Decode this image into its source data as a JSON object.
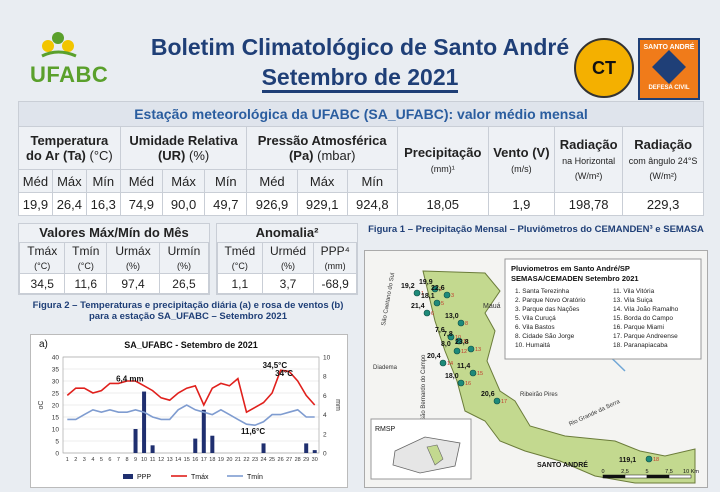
{
  "header": {
    "logo_text": "UFABC",
    "title": "Boletim Climatológico de Santo André",
    "subtitle": "Setembro de 2021",
    "right_logo1": "CT",
    "right_logo2_top": "SANTO ANDRÉ",
    "right_logo2_bottom": "DEFESA CIVIL"
  },
  "station": {
    "title": "Estação meteorológica da UFABC  (SA_UFABC): valor médio mensal",
    "groups": [
      {
        "name": "Temperatura",
        "name2": "do Ar (Ta)",
        "unit": "(°C)"
      },
      {
        "name": "Umidade Relativa",
        "name2": "(UR)",
        "unit": "(%)"
      },
      {
        "name": "Pressão Atmosférica",
        "name2": "(Pa)",
        "unit": "(mbar)"
      }
    ],
    "sub_labels": [
      "Méd",
      "Máx",
      "Mín",
      "Méd",
      "Máx",
      "Mín",
      "Méd",
      "Máx",
      "Mín"
    ],
    "values": [
      "19,9",
      "26,4",
      "16,3",
      "74,9",
      "90,0",
      "49,7",
      "926,9",
      "929,1",
      "924,8"
    ],
    "precip": {
      "label": "Precipitação",
      "unit": "(mm)¹",
      "value": "18,05"
    },
    "vento": {
      "label": "Vento (V)",
      "unit": "(m/s)",
      "value": "1,9"
    },
    "rad_h": {
      "label": "Radiação",
      "sub": "na Horizontal",
      "unit": "(W/m²)",
      "value": "198,78"
    },
    "rad_a": {
      "label": "Radiação",
      "sub": "com ângulo 24°S",
      "unit": "(W/m²)",
      "value": "229,3"
    }
  },
  "maxmin": {
    "title": "Valores Máx/Mín do Mês",
    "labels": [
      "Tmáx",
      "Tmín",
      "Urmáx",
      "Urmín"
    ],
    "units": [
      "(°C)",
      "(°C)",
      "(%)",
      "(%)"
    ],
    "values": [
      "34,5",
      "11,6",
      "97,4",
      "26,5"
    ]
  },
  "anomalia": {
    "title": "Anomalia²",
    "labels": [
      "Tméd",
      "Urméd",
      "PPP⁴"
    ],
    "units": [
      "(°C)",
      "(%)",
      "(mm)"
    ],
    "values": [
      "1,1",
      "3,7",
      "-68,9"
    ]
  },
  "fig2": {
    "caption": "Figura 2 – Temperaturas e precipitação diária (a) e rosa de ventos (b) para a estação SA_UFABC – Setembro 2021",
    "panel_label": "a)",
    "annotations": [
      "6,4 mm",
      "34,5°C",
      "34°C",
      "11,6°C"
    ],
    "legend": [
      "PPP",
      "Tmáx",
      "Tmín"
    ]
  },
  "chart_data": {
    "type": "line",
    "title": "SA_UFABC - Setembro de 2021",
    "ylabel": "oC",
    "y2label": "mm",
    "ylim": [
      0,
      40
    ],
    "y2lim": [
      0,
      10
    ],
    "x": [
      1,
      2,
      3,
      4,
      5,
      6,
      7,
      8,
      9,
      10,
      11,
      12,
      13,
      14,
      15,
      16,
      17,
      18,
      19,
      20,
      21,
      22,
      23,
      24,
      25,
      26,
      27,
      28,
      29,
      30
    ],
    "series": [
      {
        "name": "Tmáx",
        "color": "#e0201c",
        "values": [
          24,
          27,
          27,
          25,
          26,
          29,
          29,
          30,
          30,
          28,
          26,
          23,
          22,
          25,
          27,
          28,
          20,
          27,
          29,
          28,
          31,
          17,
          19,
          21,
          25,
          34.5,
          34,
          30,
          24,
          20
        ]
      },
      {
        "name": "Tmín",
        "color": "#7f9cd0",
        "values": [
          14,
          14,
          16,
          18,
          17,
          18,
          17,
          17,
          18,
          17,
          15,
          14,
          14,
          18,
          20,
          18,
          17,
          16,
          18,
          16,
          14,
          12,
          11.6,
          13,
          16,
          16,
          17,
          18,
          15,
          15
        ]
      },
      {
        "name": "PPP",
        "color": "#1f2f6f",
        "values": [
          0,
          0,
          0,
          0,
          0,
          0,
          0,
          0,
          2.5,
          6.4,
          0.8,
          0,
          0,
          0,
          0,
          1.5,
          4.5,
          1.8,
          0,
          0,
          0,
          0,
          0,
          1,
          0,
          0,
          0,
          0,
          1,
          0.3
        ]
      }
    ]
  },
  "fig1": {
    "caption": "Figura 1 – Precipitação Mensal – Pluviômetros do CEMANDEN³ e SEMASA",
    "legend_title1": "Pluviometros em Santo André/SP",
    "legend_title2": "SEMASA/CEMADEN Setembro 2021",
    "legend_items_left": [
      "1. Santa Terezinha",
      "2. Parque Novo Oratório",
      "3. Parque das Nações",
      "5. Vila Curuçá",
      "6. Vila Bastos",
      "8. Cidade São Jorge",
      "10. Humaitá"
    ],
    "legend_items_right": [
      "11. Vila Vitória",
      "13. Vila Suiça",
      "14. Vila João Ramalho",
      "15. Borda do Campo",
      "16. Parque Miami",
      "17. Parque Andreense",
      "18. Paranapiacaba"
    ],
    "places": [
      "São Caetano do Sul",
      "Mauá",
      "Diadema",
      "Ribeirão Pires",
      "Rio Grande da Serra",
      "São Bernardo do Campo",
      "SANTO ANDRÉ",
      "RMSP"
    ],
    "points": [
      {
        "id": "1",
        "val": "19,2"
      },
      {
        "id": "2",
        "val": "19,9"
      },
      {
        "id": "3",
        "val": "22,6"
      },
      {
        "id": "5",
        "val": "18,1"
      },
      {
        "id": "6",
        "val": "21,4"
      },
      {
        "id": "8",
        "val": "13,0"
      },
      {
        "id": "10",
        "val": "7,6"
      },
      {
        "id": "11",
        "val": "7,8"
      },
      {
        "id": "12",
        "val": "8,0"
      },
      {
        "id": "13",
        "val": "23,8"
      },
      {
        "id": "14",
        "val": "20,4"
      },
      {
        "id": "15",
        "val": "11,4"
      },
      {
        "id": "16",
        "val": "18,0"
      },
      {
        "id": "17",
        "val": "20,6"
      },
      {
        "id": "18",
        "val": "119,1"
      }
    ],
    "scale": [
      "0",
      "2,5",
      "5",
      "7,5",
      "10 Km"
    ]
  }
}
